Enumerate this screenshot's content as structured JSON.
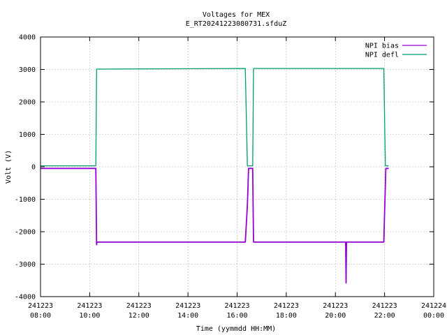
{
  "chart_data": {
    "type": "line",
    "title": "Voltages for MEX",
    "subtitle": "E_RT20241223080731.sfduZ",
    "xlabel": "Time (yymmdd HH:MM)",
    "ylabel": "Volt (V)",
    "xlim": [
      "241223 08:00",
      "241224 00:00"
    ],
    "ylim": [
      -4000,
      4000
    ],
    "grid": true,
    "legend_position": "top-right",
    "x_ticks": [
      {
        "date": "241223",
        "time": "08:00"
      },
      {
        "date": "241223",
        "time": "10:00"
      },
      {
        "date": "241223",
        "time": "12:00"
      },
      {
        "date": "241223",
        "time": "14:00"
      },
      {
        "date": "241223",
        "time": "16:00"
      },
      {
        "date": "241223",
        "time": "18:00"
      },
      {
        "date": "241223",
        "time": "20:00"
      },
      {
        "date": "241223",
        "time": "22:00"
      },
      {
        "date": "241224",
        "time": "00:00"
      }
    ],
    "y_ticks": [
      "-4000",
      "-3000",
      "-2000",
      "-1000",
      "0",
      "1000",
      "2000",
      "3000",
      "4000"
    ],
    "series": [
      {
        "name": "NPI bias",
        "color": "#9400d3",
        "points": [
          [
            "241223 08:00",
            -50
          ],
          [
            "241223 10:15",
            -50
          ],
          [
            "241223 10:17",
            -2400
          ],
          [
            "241223 10:18",
            -2320
          ],
          [
            "241223 16:20",
            -2320
          ],
          [
            "241223 16:25",
            -1200
          ],
          [
            "241223 16:28",
            -50
          ],
          [
            "241223 16:38",
            -50
          ],
          [
            "241223 16:40",
            -2320
          ],
          [
            "241223 20:25",
            -2320
          ],
          [
            "241223 20:26",
            -3580
          ],
          [
            "241223 20:27",
            -2320
          ],
          [
            "241223 21:58",
            -2320
          ],
          [
            "241223 22:03",
            -50
          ],
          [
            "241223 22:10",
            -50
          ]
        ]
      },
      {
        "name": "NPI defl",
        "color": "#009e73",
        "points": [
          [
            "241223 08:00",
            30
          ],
          [
            "241223 10:15",
            30
          ],
          [
            "241223 10:17",
            3010
          ],
          [
            "241223 16:20",
            3030
          ],
          [
            "241223 16:25",
            30
          ],
          [
            "241223 16:38",
            30
          ],
          [
            "241223 16:40",
            3030
          ],
          [
            "241223 21:58",
            3030
          ],
          [
            "241223 22:02",
            30
          ],
          [
            "241223 22:10",
            30
          ]
        ]
      }
    ]
  }
}
